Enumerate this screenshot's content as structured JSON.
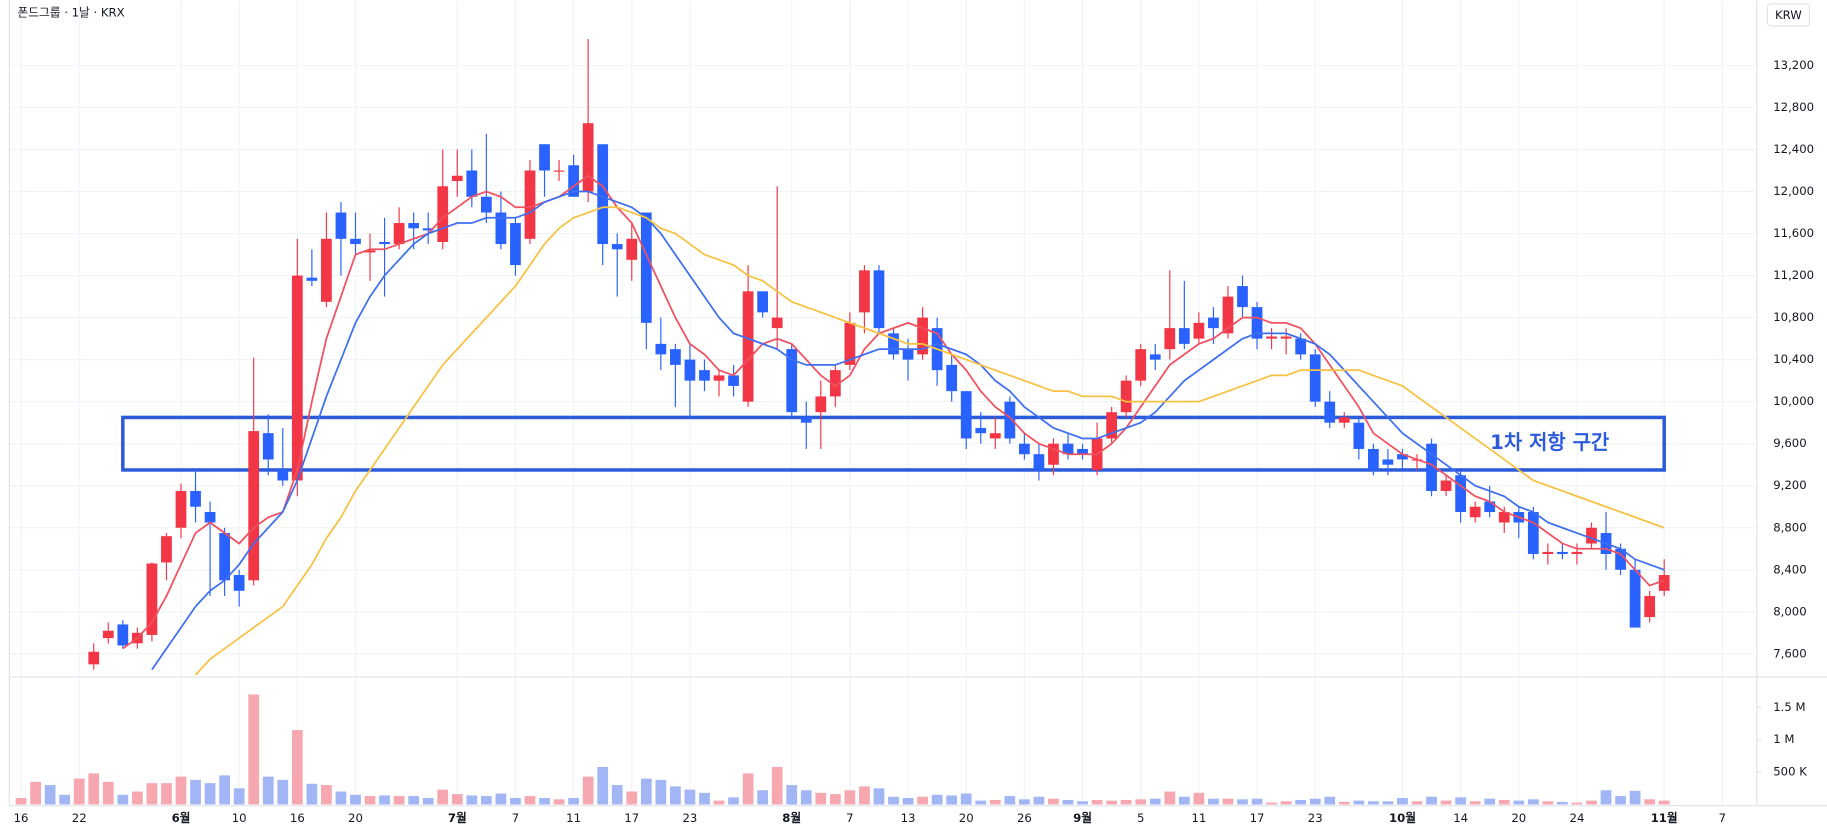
{
  "chart_data": {
    "type": "candlestick",
    "title": "폰드그룹 · 1날 · KRX",
    "currency": "KRW",
    "up_color": "#f23645",
    "down_color": "#2962ff",
    "grid": true,
    "categories": [
      "16",
      null,
      null,
      null,
      "22",
      null,
      null,
      null,
      null,
      null,
      null,
      "6월",
      null,
      null,
      null,
      "10",
      null,
      null,
      null,
      "16",
      null,
      null,
      null,
      "20",
      null,
      null,
      null,
      null,
      null,
      null,
      "7월",
      null,
      null,
      null,
      "7",
      null,
      null,
      null,
      "11",
      null,
      null,
      null,
      "17",
      null,
      null,
      null,
      "23",
      null,
      null,
      null,
      null,
      null,
      null,
      "8월",
      null,
      null,
      null,
      "7",
      null,
      null,
      null,
      "13",
      null,
      null,
      null,
      "20",
      null,
      null,
      null,
      "26",
      null,
      null,
      null,
      "9월",
      null,
      null,
      null,
      "5",
      null,
      null,
      null,
      "11",
      null,
      null,
      null,
      "17",
      null,
      null,
      null,
      "23",
      null,
      null,
      null,
      null,
      null,
      "10월",
      null,
      null,
      null,
      "14",
      null,
      null,
      null,
      "20",
      null,
      null,
      null,
      "24",
      null,
      null,
      null,
      null,
      null,
      "11월",
      null,
      null,
      null,
      "7"
    ],
    "open": [
      null,
      null,
      null,
      null,
      null,
      7500,
      7750,
      7880,
      7700,
      7780,
      8470,
      8800,
      9150,
      8950,
      8750,
      8350,
      8300,
      9700,
      9350,
      9250,
      11180,
      10950,
      11800,
      11550,
      11420,
      11520,
      11500,
      11700,
      11650,
      11520,
      12100,
      12200,
      11950,
      11800,
      11700,
      11550,
      12450,
      12200,
      12250,
      12000,
      12450,
      11500,
      11350,
      11800,
      10550,
      10500,
      10400,
      10300,
      10200,
      10250,
      10000,
      11050,
      10700,
      10500,
      9850,
      9900,
      10050,
      10350,
      10850,
      11250,
      10650,
      10500,
      10450,
      10700,
      10350,
      10100,
      9750,
      9650,
      10000,
      9600,
      9500,
      9400,
      9600,
      9550,
      9350,
      9650,
      9900,
      10200,
      10450,
      10500,
      10700,
      10600,
      10800,
      10650,
      11100,
      10900,
      10600,
      10600,
      10600,
      10450,
      10000,
      9800,
      9800,
      9550,
      9450,
      9500,
      9450,
      9600,
      9150,
      9300,
      8900,
      9050,
      8850,
      8950,
      8950,
      8550,
      8570,
      8550,
      8650,
      8750,
      8600,
      8400,
      7950,
      8200,
      null,
      null,
      null,
      null
    ],
    "high": [
      null,
      null,
      null,
      null,
      null,
      7700,
      7900,
      7920,
      7850,
      8470,
      8750,
      9220,
      9350,
      9050,
      8800,
      8400,
      10420,
      9880,
      9750,
      11550,
      11450,
      11800,
      11900,
      11800,
      11600,
      11750,
      11850,
      11800,
      11800,
      12400,
      12400,
      12400,
      12550,
      12000,
      11750,
      12300,
      12450,
      12300,
      12350,
      13450,
      12450,
      11600,
      11700,
      11800,
      10800,
      10550,
      10550,
      10400,
      10300,
      10350,
      11300,
      11050,
      12050,
      10550,
      10000,
      10200,
      10350,
      10850,
      11300,
      11300,
      10700,
      10600,
      10900,
      10800,
      10450,
      10100,
      9900,
      9850,
      10050,
      9700,
      9600,
      9650,
      9700,
      9600,
      9800,
      9950,
      10250,
      10550,
      10550,
      11250,
      11150,
      10850,
      10900,
      11100,
      11200,
      10950,
      10700,
      10700,
      10650,
      10500,
      10100,
      9900,
      9850,
      9600,
      9550,
      9550,
      9500,
      9650,
      9300,
      9350,
      9050,
      9200,
      9000,
      9000,
      9000,
      8650,
      8650,
      8650,
      8850,
      8950,
      8650,
      8500,
      8200,
      8500,
      null,
      null,
      null,
      null
    ],
    "low": [
      null,
      null,
      null,
      null,
      null,
      7450,
      7700,
      7650,
      7650,
      7720,
      8300,
      8700,
      8850,
      8150,
      8150,
      8050,
      8250,
      9300,
      9200,
      9100,
      11100,
      10900,
      11200,
      11400,
      11150,
      11000,
      11450,
      11450,
      11500,
      11450,
      11950,
      11850,
      11700,
      11450,
      11200,
      11500,
      11950,
      12100,
      11950,
      11900,
      11300,
      11000,
      11150,
      10500,
      10300,
      9950,
      9850,
      10100,
      10050,
      10050,
      9950,
      10800,
      10500,
      9850,
      9550,
      9550,
      9950,
      10300,
      10650,
      10650,
      10400,
      10200,
      10400,
      10150,
      10000,
      9550,
      9600,
      9550,
      9600,
      9450,
      9250,
      9300,
      9450,
      9450,
      9300,
      9600,
      9850,
      10150,
      10300,
      10400,
      10500,
      10550,
      10550,
      10600,
      10800,
      10500,
      10500,
      10450,
      10400,
      9950,
      9750,
      9750,
      9450,
      9300,
      9300,
      9350,
      9350,
      9100,
      9100,
      8850,
      8850,
      8900,
      8750,
      8700,
      8500,
      8450,
      8500,
      8450,
      8600,
      8400,
      8350,
      7850,
      7900,
      8150,
      null,
      null,
      null,
      null
    ],
    "close": [
      null,
      null,
      null,
      null,
      null,
      7620,
      7820,
      7680,
      7800,
      8460,
      8720,
      9150,
      9000,
      8850,
      8300,
      8200,
      9720,
      9450,
      9250,
      11200,
      11150,
      11550,
      11550,
      11500,
      11440,
      11500,
      11700,
      11650,
      11630,
      12050,
      12150,
      11950,
      11800,
      11500,
      11300,
      12200,
      12200,
      12200,
      11950,
      12650,
      11500,
      11450,
      11550,
      10750,
      10450,
      10350,
      10200,
      10200,
      10250,
      10150,
      11050,
      10850,
      10800,
      9900,
      9800,
      10050,
      10300,
      10750,
      11250,
      10700,
      10450,
      10400,
      10800,
      10300,
      10100,
      9650,
      9700,
      9700,
      9650,
      9500,
      9350,
      9600,
      9500,
      9500,
      9650,
      9900,
      10200,
      10500,
      10400,
      10700,
      10550,
      10750,
      10700,
      11000,
      10900,
      10600,
      10620,
      10620,
      10450,
      10000,
      9800,
      9850,
      9550,
      9350,
      9400,
      9450,
      9450,
      9150,
      9250,
      8950,
      9000,
      8950,
      8950,
      8850,
      8550,
      8570,
      8550,
      8570,
      8800,
      8550,
      8400,
      7850,
      8150,
      8350,
      null,
      null,
      null,
      null
    ],
    "ylim": [
      7390,
      13820
    ],
    "yticks": [
      {
        "value": 7600,
        "label": "7,600"
      },
      {
        "value": 8000,
        "label": "8,000"
      },
      {
        "value": 8400,
        "label": "8,400"
      },
      {
        "value": 8800,
        "label": "8,800"
      },
      {
        "value": 9200,
        "label": "9,200"
      },
      {
        "value": 9600,
        "label": "9,600"
      },
      {
        "value": 10000,
        "label": "10,000"
      },
      {
        "value": 10400,
        "label": "10,400"
      },
      {
        "value": 10800,
        "label": "10,800"
      },
      {
        "value": 11200,
        "label": "11,200"
      },
      {
        "value": 11600,
        "label": "11,600"
      },
      {
        "value": 12000,
        "label": "12,000"
      },
      {
        "value": 12400,
        "label": "12,400"
      },
      {
        "value": 12800,
        "label": "12,800"
      },
      {
        "value": 13200,
        "label": "13,200"
      }
    ],
    "moving_averages": [
      {
        "color": "#f0505f",
        "values": [
          null,
          null,
          null,
          null,
          null,
          null,
          null,
          7650,
          7750,
          7900,
          8150,
          8450,
          8750,
          8850,
          8750,
          8650,
          8800,
          8900,
          8950,
          9350,
          10000,
          10600,
          11000,
          11400,
          11450,
          11450,
          11500,
          11550,
          11600,
          11750,
          11850,
          11950,
          12000,
          11950,
          11850,
          11850,
          11900,
          11950,
          12050,
          12150,
          12050,
          11850,
          11700,
          11400,
          11100,
          10800,
          10550,
          10450,
          10300,
          10250,
          10400,
          10550,
          10600,
          10550,
          10400,
          10250,
          10150,
          10250,
          10500,
          10650,
          10700,
          10750,
          10700,
          10650,
          10450,
          10300,
          10100,
          9950,
          9850,
          9700,
          9600,
          9550,
          9500,
          9500,
          9500,
          9600,
          9750,
          9950,
          10150,
          10350,
          10450,
          10550,
          10600,
          10700,
          10800,
          10800,
          10750,
          10750,
          10700,
          10550,
          10350,
          10150,
          9950,
          9700,
          9600,
          9500,
          9450,
          9400,
          9300,
          9200,
          9100,
          9050,
          8950,
          8900,
          8850,
          8750,
          8650,
          8600,
          8600,
          8600,
          8550,
          8400,
          8250,
          8300,
          null,
          null,
          null,
          null
        ]
      },
      {
        "color": "#3d6ff0",
        "values": [
          null,
          null,
          null,
          null,
          null,
          null,
          null,
          null,
          null,
          7450,
          7650,
          7850,
          8050,
          8200,
          8300,
          8450,
          8650,
          8800,
          8950,
          9250,
          9650,
          10050,
          10400,
          10750,
          11000,
          11200,
          11350,
          11500,
          11600,
          11650,
          11700,
          11700,
          11750,
          11750,
          11750,
          11800,
          11900,
          11950,
          12000,
          12000,
          11950,
          11900,
          11850,
          11750,
          11600,
          11400,
          11200,
          11000,
          10800,
          10650,
          10600,
          10550,
          10500,
          10400,
          10350,
          10350,
          10350,
          10400,
          10450,
          10500,
          10500,
          10500,
          10500,
          10550,
          10500,
          10450,
          10350,
          10200,
          10100,
          9950,
          9850,
          9750,
          9700,
          9650,
          9650,
          9700,
          9750,
          9800,
          9900,
          10050,
          10200,
          10300,
          10400,
          10500,
          10600,
          10650,
          10650,
          10650,
          10600,
          10550,
          10450,
          10300,
          10150,
          10000,
          9850,
          9700,
          9600,
          9500,
          9400,
          9300,
          9200,
          9150,
          9100,
          9000,
          8950,
          8850,
          8800,
          8750,
          8700,
          8650,
          8600,
          8500,
          8450,
          8400,
          null,
          null,
          null,
          null
        ]
      },
      {
        "color": "#f7c142",
        "values": [
          null,
          null,
          null,
          null,
          null,
          null,
          null,
          null,
          null,
          null,
          null,
          null,
          7400,
          7550,
          7650,
          7750,
          7850,
          7950,
          8050,
          8250,
          8450,
          8700,
          8900,
          9150,
          9350,
          9550,
          9750,
          9950,
          10150,
          10350,
          10500,
          10650,
          10800,
          10950,
          11100,
          11300,
          11500,
          11650,
          11750,
          11800,
          11850,
          11850,
          11800,
          11750,
          11650,
          11600,
          11500,
          11400,
          11350,
          11300,
          11200,
          11150,
          11050,
          10950,
          10900,
          10850,
          10800,
          10750,
          10700,
          10650,
          10600,
          10550,
          10550,
          10500,
          10450,
          10400,
          10350,
          10300,
          10250,
          10200,
          10150,
          10100,
          10100,
          10050,
          10050,
          10050,
          10000,
          10000,
          10000,
          10000,
          10000,
          10000,
          10050,
          10100,
          10150,
          10200,
          10250,
          10250,
          10300,
          10300,
          10300,
          10300,
          10300,
          10250,
          10200,
          10150,
          10050,
          9950,
          9850,
          9750,
          9650,
          9550,
          9450,
          9350,
          9250,
          9200,
          9150,
          9100,
          9050,
          9000,
          8950,
          8900,
          8850,
          8800,
          null,
          null,
          null,
          null
        ]
      }
    ],
    "volume": {
      "up_color": "#f7a7b0",
      "down_color": "#a2b6f6",
      "values": [
        100000,
        350000,
        300000,
        150000,
        400000,
        480000,
        350000,
        150000,
        200000,
        330000,
        330000,
        430000,
        380000,
        330000,
        450000,
        250000,
        1700000,
        430000,
        380000,
        1150000,
        320000,
        300000,
        200000,
        150000,
        130000,
        140000,
        130000,
        130000,
        100000,
        230000,
        160000,
        140000,
        130000,
        170000,
        100000,
        130000,
        100000,
        80000,
        100000,
        430000,
        580000,
        300000,
        200000,
        400000,
        380000,
        280000,
        230000,
        180000,
        60000,
        110000,
        480000,
        220000,
        580000,
        300000,
        220000,
        180000,
        160000,
        220000,
        280000,
        250000,
        120000,
        100000,
        120000,
        150000,
        140000,
        170000,
        60000,
        70000,
        130000,
        80000,
        120000,
        90000,
        70000,
        50000,
        70000,
        60000,
        70000,
        80000,
        90000,
        200000,
        120000,
        180000,
        90000,
        90000,
        80000,
        90000,
        30000,
        50000,
        70000,
        90000,
        120000,
        40000,
        60000,
        50000,
        50000,
        100000,
        50000,
        120000,
        60000,
        110000,
        50000,
        90000,
        70000,
        60000,
        80000,
        50000,
        40000,
        30000,
        60000,
        220000,
        130000,
        210000,
        80000,
        60000,
        null,
        null,
        null,
        null
      ],
      "rising": [
        true,
        true,
        false,
        false,
        true,
        true,
        true,
        false,
        true,
        true,
        true,
        true,
        false,
        false,
        false,
        false,
        true,
        false,
        false,
        true,
        false,
        true,
        false,
        false,
        true,
        false,
        true,
        false,
        false,
        true,
        true,
        false,
        false,
        false,
        false,
        true,
        false,
        true,
        false,
        true,
        false,
        false,
        true,
        false,
        false,
        false,
        false,
        false,
        true,
        false,
        true,
        false,
        true,
        false,
        false,
        true,
        true,
        true,
        true,
        false,
        false,
        false,
        true,
        false,
        false,
        false,
        false,
        true,
        false,
        false,
        false,
        true,
        false,
        false,
        true,
        true,
        true,
        true,
        false,
        true,
        false,
        true,
        false,
        true,
        false,
        false,
        true,
        true,
        false,
        false,
        false,
        true,
        false,
        false,
        false,
        false,
        true,
        false,
        true,
        false,
        true,
        false,
        true,
        false,
        false,
        true,
        false,
        true,
        true,
        false,
        false,
        false,
        true,
        true,
        null,
        null,
        null,
        null
      ],
      "ylim": [
        0,
        1950000
      ],
      "yticks": [
        {
          "value": 500000,
          "label": "500 K"
        },
        {
          "value": 1000000,
          "label": "1 M"
        },
        {
          "value": 1500000,
          "label": "1.5 M"
        }
      ]
    },
    "annotation": {
      "text": "1차 저항 구간",
      "x": [
        7,
        113
      ],
      "y": [
        9350,
        9850
      ],
      "color": "#2b5bdb"
    }
  }
}
